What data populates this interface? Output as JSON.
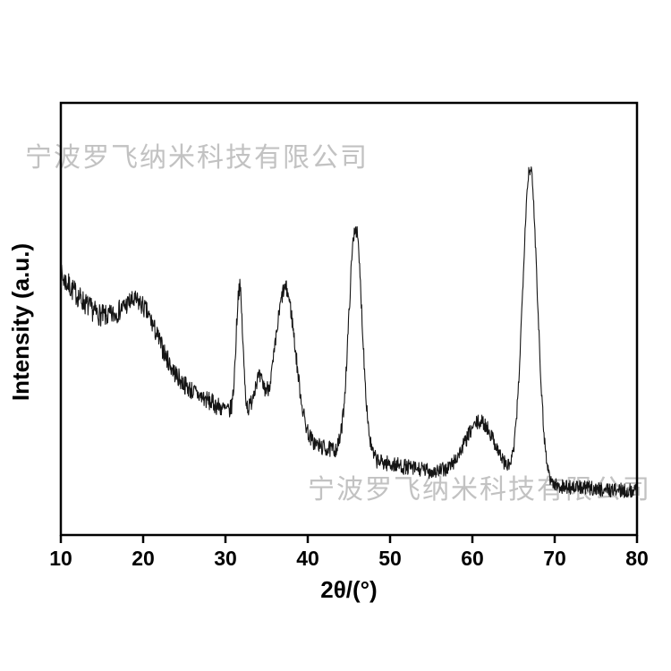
{
  "watermark": {
    "text": "宁波罗飞纳米科技有限公司",
    "color": "#c2c2c2"
  },
  "chart_data": {
    "type": "line",
    "title": "",
    "xlabel": "2θ/(°)",
    "ylabel": "Intensity (a.u.)",
    "xlim": [
      10,
      80
    ],
    "ylim": [
      0,
      100
    ],
    "x_ticks": [
      10,
      20,
      30,
      40,
      50,
      60,
      70,
      80
    ],
    "y_ticks": [],
    "grid": false,
    "legend": null,
    "line_color": "#141414",
    "description": "Powder XRD pattern: noisy intensity trace (arbitrary units) over a decaying background with diffraction peaks near 2-theta = 19.6, 31.7, 34, 37.3, 45.8, 61 and 67 degrees",
    "background_model": {
      "base": 8,
      "amplitude": 52,
      "decay": 22
    },
    "noise_model": {
      "base": 1.6,
      "amplitude": 1.2,
      "decay": 25,
      "seed": 7
    },
    "sample_step_deg": 0.05,
    "peaks": [
      {
        "center_2theta": 19.6,
        "height": 12,
        "sigma": 2.2
      },
      {
        "center_2theta": 31.7,
        "height": 30,
        "sigma": 0.4
      },
      {
        "center_2theta": 34.0,
        "height": 10,
        "sigma": 0.7
      },
      {
        "center_2theta": 37.3,
        "height": 34,
        "sigma": 1.2
      },
      {
        "center_2theta": 45.8,
        "height": 53,
        "sigma": 0.8
      },
      {
        "center_2theta": 61.0,
        "height": 13,
        "sigma": 1.9
      },
      {
        "center_2theta": 67.0,
        "height": 73,
        "sigma": 0.9
      }
    ]
  }
}
